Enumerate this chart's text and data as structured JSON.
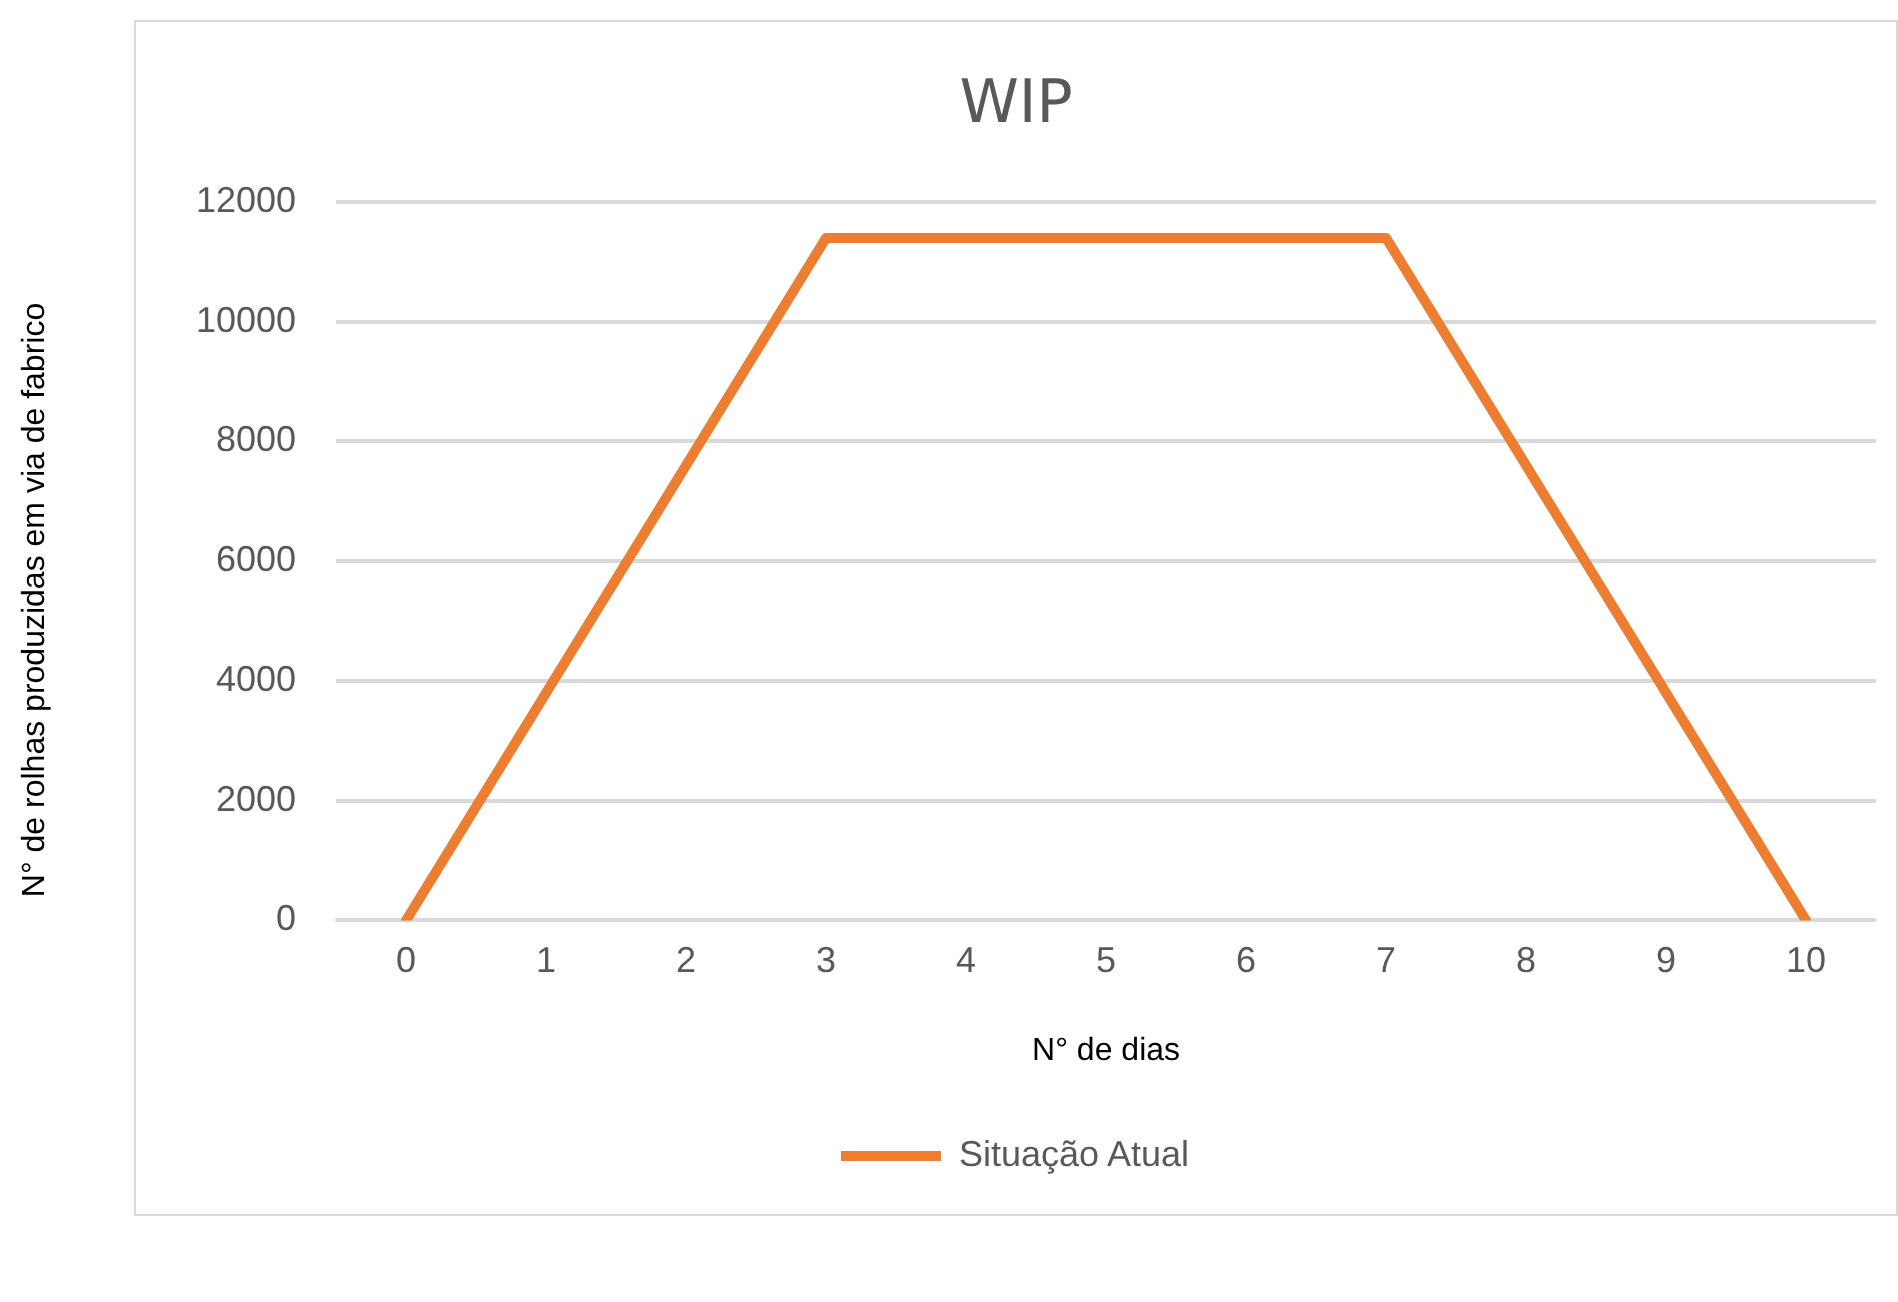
{
  "chart_data": {
    "type": "line",
    "title": "WIP",
    "xlabel": "N° de dias",
    "ylabel": "N° de rolhas produzidas em via de fabrico",
    "categories": [
      "0",
      "1",
      "2",
      "3",
      "4",
      "5",
      "6",
      "7",
      "8",
      "9",
      "10"
    ],
    "series": [
      {
        "name": "Situação Atual",
        "color": "#ed7d31",
        "values": [
          0,
          3800,
          7600,
          11400,
          11400,
          11400,
          11400,
          11400,
          7600,
          3800,
          0
        ]
      }
    ],
    "ylim": [
      0,
      12000
    ],
    "yticks": [
      0,
      2000,
      4000,
      6000,
      8000,
      10000,
      12000
    ],
    "grid": "y",
    "legend": "bottom",
    "marker": "none",
    "line_style": "solid"
  }
}
